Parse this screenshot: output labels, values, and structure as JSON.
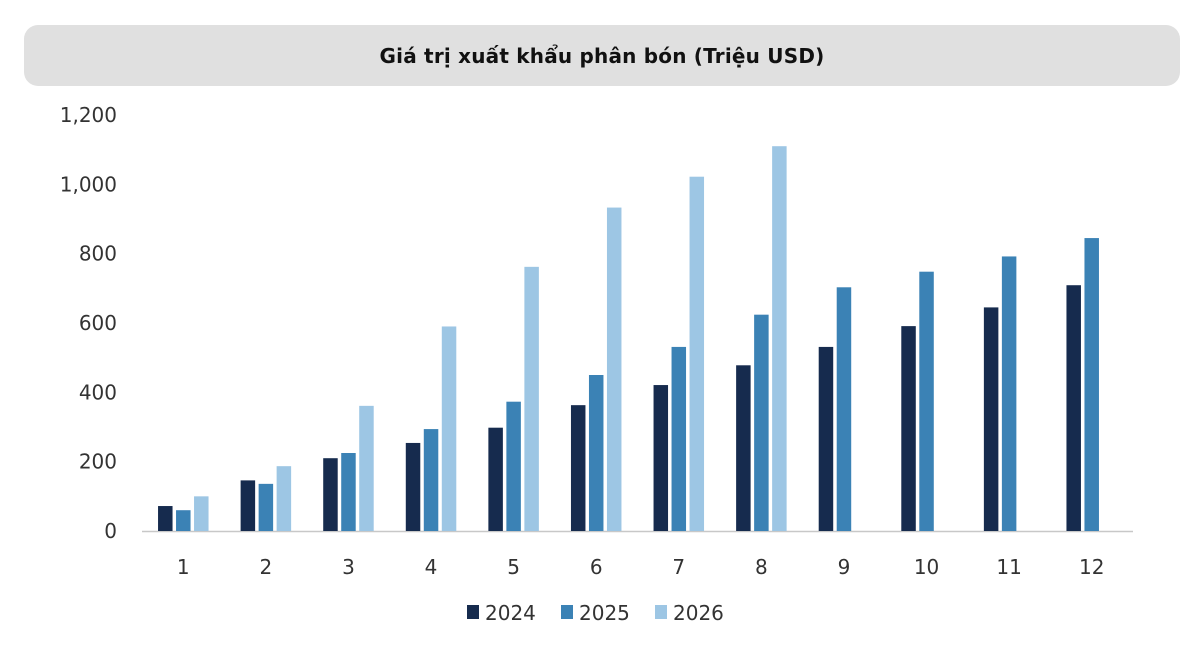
{
  "chart_data": {
    "type": "bar",
    "title": "Giá trị xuất khẩu phân bón (Triệu USD)",
    "xlabel": "",
    "ylabel": "",
    "categories": [
      "1",
      "2",
      "3",
      "4",
      "5",
      "6",
      "7",
      "8",
      "9",
      "10",
      "11",
      "12"
    ],
    "series": [
      {
        "name": "2024",
        "color": "#162b4e",
        "values": [
          72,
          146,
          210,
          254,
          298,
          363,
          421,
          478,
          531,
          591,
          645,
          709
        ]
      },
      {
        "name": "2025",
        "color": "#3b82b5",
        "values": [
          60,
          136,
          225,
          294,
          373,
          450,
          531,
          624,
          703,
          748,
          792,
          845
        ]
      },
      {
        "name": "2026",
        "color": "#9dc6e4",
        "values": [
          100,
          187,
          361,
          590,
          762,
          933,
          1022,
          1110,
          null,
          null,
          null,
          null
        ]
      }
    ],
    "ylim": [
      0,
      1200
    ],
    "yticks": [
      0,
      200,
      400,
      600,
      800,
      1000,
      1200
    ],
    "ytick_labels": [
      "0",
      "200",
      "400",
      "600",
      "800",
      "1,000",
      "1,200"
    ],
    "grid": false,
    "legend_position": "bottom-center"
  }
}
